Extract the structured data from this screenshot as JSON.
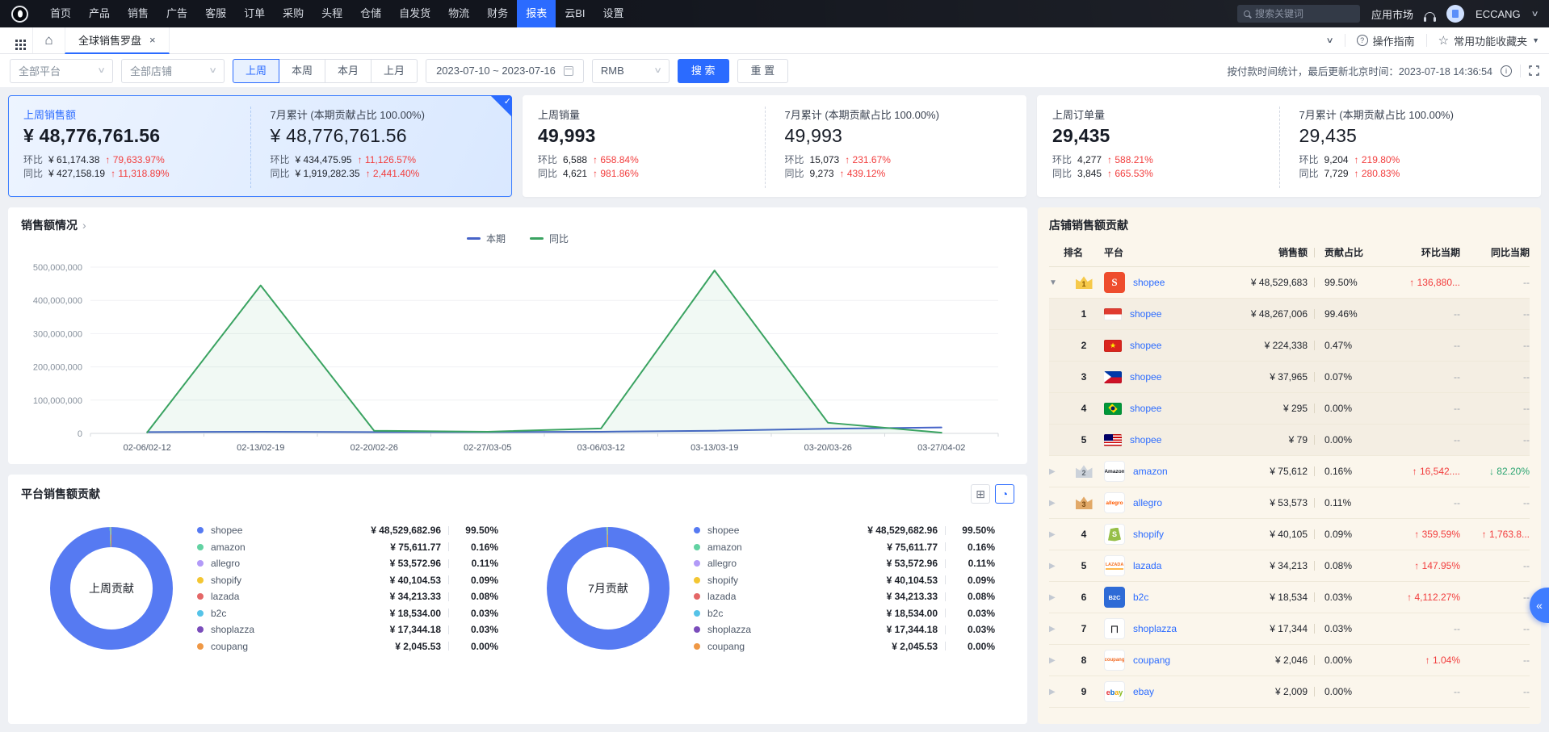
{
  "topnav": {
    "menu": [
      "首页",
      "产品",
      "销售",
      "广告",
      "客服",
      "订单",
      "采购",
      "头程",
      "仓储",
      "自发货",
      "物流",
      "财务",
      "报表",
      "云BI",
      "设置"
    ],
    "active": "报表",
    "search_placeholder": "搜索关键词",
    "app_market": "应用市场",
    "account": "ECCANG"
  },
  "tabbar": {
    "tab": "全球销售罗盘",
    "guide": "操作指南",
    "favorites": "常用功能收藏夹"
  },
  "filterbar": {
    "platform": "全部平台",
    "store": "全部店铺",
    "periods": [
      "上周",
      "本周",
      "本月",
      "上月"
    ],
    "active_period": "上周",
    "date_range": "2023-07-10   ~   2023-07-16",
    "currency": "RMB",
    "search": "搜 索",
    "reset": "重 置",
    "update_info": "按付款时间统计，最后更新北京时间：2023-07-18 14:36:54"
  },
  "kpis": [
    {
      "primary": {
        "title": "上周销售额",
        "value": "¥ 48,776,761.56",
        "mom_label": "环比",
        "mom_base": "¥ 61,174.38",
        "mom_pct": "↑ 79,633.97%",
        "yoy_label": "同比",
        "yoy_base": "¥ 427,158.19",
        "yoy_pct": "↑ 11,318.89%"
      },
      "secondary": {
        "title": "7月累计 (本期贡献占比 100.00%)",
        "value": "¥ 48,776,761.56",
        "mom_label": "环比",
        "mom_base": "¥ 434,475.95",
        "mom_pct": "↑ 11,126.57%",
        "yoy_label": "同比",
        "yoy_base": "¥ 1,919,282.35",
        "yoy_pct": "↑ 2,441.40%"
      }
    },
    {
      "primary": {
        "title": "上周销量",
        "value": "49,993",
        "mom_label": "环比",
        "mom_base": "6,588",
        "mom_pct": "↑ 658.84%",
        "yoy_label": "同比",
        "yoy_base": "4,621",
        "yoy_pct": "↑ 981.86%"
      },
      "secondary": {
        "title": "7月累计 (本期贡献占比 100.00%)",
        "value": "49,993",
        "mom_label": "环比",
        "mom_base": "15,073",
        "mom_pct": "↑ 231.67%",
        "yoy_label": "同比",
        "yoy_base": "9,273",
        "yoy_pct": "↑ 439.12%"
      }
    },
    {
      "primary": {
        "title": "上周订单量",
        "value": "29,435",
        "mom_label": "环比",
        "mom_base": "4,277",
        "mom_pct": "↑ 588.21%",
        "yoy_label": "同比",
        "yoy_base": "3,845",
        "yoy_pct": "↑ 665.53%"
      },
      "secondary": {
        "title": "7月累计 (本期贡献占比 100.00%)",
        "value": "29,435",
        "mom_label": "环比",
        "mom_base": "9,204",
        "mom_pct": "↑ 219.80%",
        "yoy_label": "同比",
        "yoy_base": "7,729",
        "yoy_pct": "↑ 280.83%"
      }
    }
  ],
  "chart_data": [
    {
      "type": "line",
      "title": "销售额情况",
      "x": [
        "02-06/02-12",
        "02-13/02-19",
        "02-20/02-26",
        "02-27/03-05",
        "03-06/03-12",
        "03-13/03-19",
        "03-20/03-26",
        "03-27/04-02"
      ],
      "series": [
        {
          "name": "本期",
          "color": "#4663c8",
          "values": [
            4000000,
            5000000,
            4000000,
            4000000,
            5000000,
            8000000,
            14000000,
            18000000
          ]
        },
        {
          "name": "同比",
          "color": "#3aa361",
          "fill": "rgba(58,163,97,0.07)",
          "values": [
            3000000,
            445000000,
            8000000,
            5000000,
            15000000,
            490000000,
            32000000,
            2000000
          ]
        }
      ],
      "ylim": [
        0,
        500000000
      ],
      "yticks": [
        "500,000,000",
        "400,000,000",
        "300,000,000",
        "200,000,000",
        "100,000,000",
        "0"
      ],
      "legend_position": "top-center",
      "grid": true
    },
    {
      "type": "pie",
      "title": "平台销售额贡献",
      "labels": [
        "shopee",
        "amazon",
        "allegro",
        "shopify",
        "lazada",
        "b2c",
        "shoplazza",
        "coupang"
      ],
      "values": [
        99.5,
        0.16,
        0.11,
        0.09,
        0.08,
        0.03,
        0.03,
        0.0
      ],
      "colors": [
        "#567af2",
        "#62d2a2",
        "#b29af8",
        "#f3c632",
        "#e46767",
        "#55c3e8",
        "#7a4dbb",
        "#ef9845"
      ],
      "donut_labels": [
        "上周贡献",
        "7月贡献"
      ]
    }
  ],
  "platform_contrib": {
    "title": "平台销售额贡献",
    "donuts": [
      {
        "label": "上周贡献"
      },
      {
        "label": "7月贡献"
      }
    ],
    "legend": [
      {
        "name": "shopee",
        "color": "#567af2",
        "value": "¥ 48,529,682.96",
        "pct": "99.50%"
      },
      {
        "name": "amazon",
        "color": "#62d2a2",
        "value": "¥ 75,611.77",
        "pct": "0.16%"
      },
      {
        "name": "allegro",
        "color": "#b29af8",
        "value": "¥ 53,572.96",
        "pct": "0.11%"
      },
      {
        "name": "shopify",
        "color": "#f3c632",
        "value": "¥ 40,104.53",
        "pct": "0.09%"
      },
      {
        "name": "lazada",
        "color": "#e46767",
        "value": "¥ 34,213.33",
        "pct": "0.08%"
      },
      {
        "name": "b2c",
        "color": "#55c3e8",
        "value": "¥ 18,534.00",
        "pct": "0.03%"
      },
      {
        "name": "shoplazza",
        "color": "#7a4dbb",
        "value": "¥ 17,344.18",
        "pct": "0.03%"
      },
      {
        "name": "coupang",
        "color": "#ef9845",
        "value": "¥ 2,045.53",
        "pct": "0.00%"
      }
    ]
  },
  "store_table": {
    "title": "店铺销售额贡献",
    "headers": [
      "排名",
      "平台",
      "销售额",
      "贡献占比",
      "环比当期",
      "同比当期"
    ],
    "rows": [
      {
        "type": "parent",
        "expanded": true,
        "rank": "1",
        "crown": "gold",
        "platform": "shopee",
        "logo": "shopee",
        "logo_text": "S",
        "sales": "¥ 48,529,683",
        "pct": "99.50%",
        "mom": {
          "text": "↑ 136,880...",
          "dir": "up"
        },
        "yoy": {
          "text": "--",
          "dir": "none"
        }
      },
      {
        "type": "child",
        "rank": "1",
        "flag": "id",
        "platform": "shopee",
        "sales": "¥ 48,267,006",
        "pct": "99.46%",
        "mom": {
          "text": "--",
          "dir": "none"
        },
        "yoy": {
          "text": "--",
          "dir": "none"
        }
      },
      {
        "type": "child",
        "rank": "2",
        "flag": "vn",
        "platform": "shopee",
        "sales": "¥ 224,338",
        "pct": "0.47%",
        "mom": {
          "text": "--",
          "dir": "none"
        },
        "yoy": {
          "text": "--",
          "dir": "none"
        }
      },
      {
        "type": "child",
        "rank": "3",
        "flag": "ph",
        "platform": "shopee",
        "sales": "¥ 37,965",
        "pct": "0.07%",
        "mom": {
          "text": "--",
          "dir": "none"
        },
        "yoy": {
          "text": "--",
          "dir": "none"
        }
      },
      {
        "type": "child",
        "rank": "4",
        "flag": "br",
        "platform": "shopee",
        "sales": "¥ 295",
        "pct": "0.00%",
        "mom": {
          "text": "--",
          "dir": "none"
        },
        "yoy": {
          "text": "--",
          "dir": "none"
        }
      },
      {
        "type": "child",
        "rank": "5",
        "flag": "my",
        "platform": "shopee",
        "sales": "¥ 79",
        "pct": "0.00%",
        "mom": {
          "text": "--",
          "dir": "none"
        },
        "yoy": {
          "text": "--",
          "dir": "none"
        }
      },
      {
        "type": "parent",
        "rank": "2",
        "crown": "silver",
        "platform": "amazon",
        "logo": "amazon",
        "logo_text": "Amazon",
        "sales": "¥ 75,612",
        "pct": "0.16%",
        "mom": {
          "text": "↑ 16,542....",
          "dir": "up"
        },
        "yoy": {
          "text": "↓ 82.20%",
          "dir": "down"
        }
      },
      {
        "type": "parent",
        "rank": "3",
        "crown": "bronze",
        "platform": "allegro",
        "logo": "allegro",
        "logo_text": "allegro",
        "sales": "¥ 53,573",
        "pct": "0.11%",
        "mom": {
          "text": "--",
          "dir": "none"
        },
        "yoy": {
          "text": "--",
          "dir": "none"
        }
      },
      {
        "type": "parent",
        "rank": "4",
        "platform": "shopify",
        "logo": "shopify",
        "logo_text": "S",
        "sales": "¥ 40,105",
        "pct": "0.09%",
        "mom": {
          "text": "↑ 359.59%",
          "dir": "up"
        },
        "yoy": {
          "text": "↑ 1,763.8...",
          "dir": "up"
        }
      },
      {
        "type": "parent",
        "rank": "5",
        "platform": "lazada",
        "logo": "lazada",
        "logo_text": "LAZADA",
        "sales": "¥ 34,213",
        "pct": "0.08%",
        "mom": {
          "text": "↑ 147.95%",
          "dir": "up"
        },
        "yoy": {
          "text": "--",
          "dir": "none"
        }
      },
      {
        "type": "parent",
        "rank": "6",
        "platform": "b2c",
        "logo": "b2c",
        "logo_text": "B2C",
        "sales": "¥ 18,534",
        "pct": "0.03%",
        "mom": {
          "text": "↑ 4,112.27%",
          "dir": "up"
        },
        "yoy": {
          "text": "--",
          "dir": "none"
        }
      },
      {
        "type": "parent",
        "rank": "7",
        "platform": "shoplazza",
        "logo": "shoplazza",
        "logo_text": "⊓",
        "sales": "¥ 17,344",
        "pct": "0.03%",
        "mom": {
          "text": "--",
          "dir": "none"
        },
        "yoy": {
          "text": "--",
          "dir": "none"
        }
      },
      {
        "type": "parent",
        "rank": "8",
        "platform": "coupang",
        "logo": "coupang",
        "logo_text": "coupang",
        "sales": "¥ 2,046",
        "pct": "0.00%",
        "mom": {
          "text": "↑ 1.04%",
          "dir": "up"
        },
        "yoy": {
          "text": "--",
          "dir": "none"
        }
      },
      {
        "type": "parent",
        "rank": "9",
        "platform": "ebay",
        "logo": "ebay",
        "logo_text": "ebay",
        "sales": "¥ 2,009",
        "pct": "0.00%",
        "mom": {
          "text": "--",
          "dir": "none"
        },
        "yoy": {
          "text": "--",
          "dir": "none"
        }
      }
    ]
  }
}
